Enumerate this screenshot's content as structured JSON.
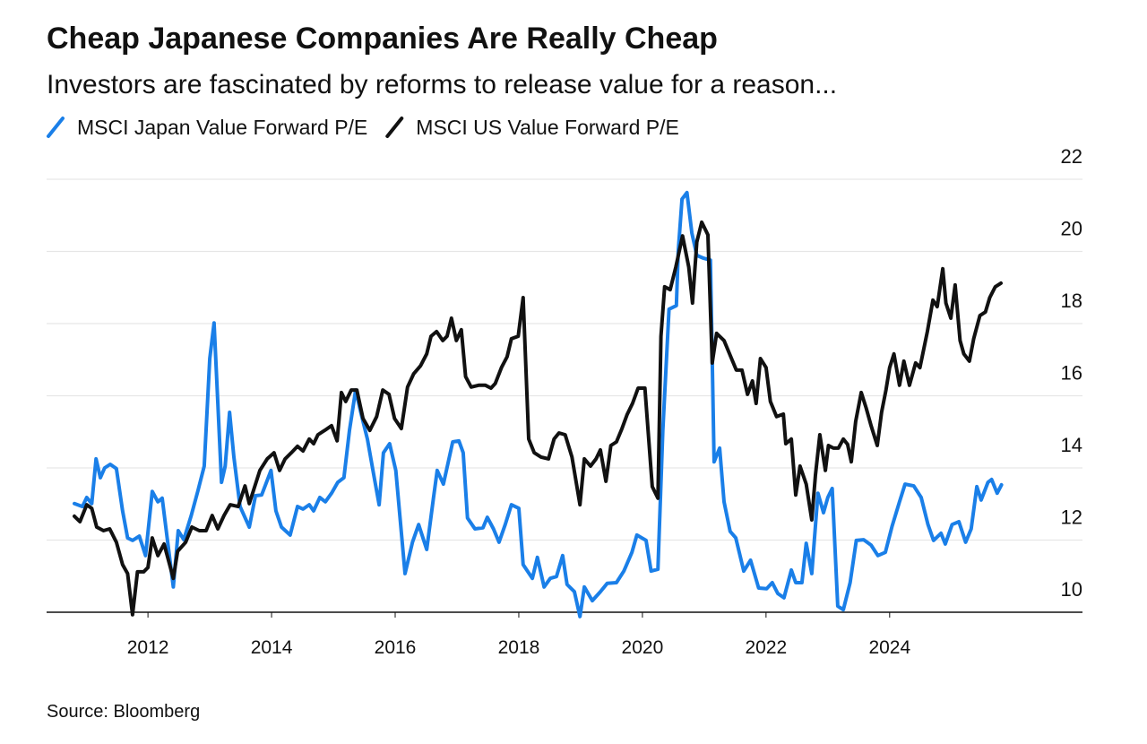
{
  "chart_data": {
    "type": "line",
    "title": "Cheap Japanese Companies Are Really Cheap",
    "subtitle": "Investors are fascinated by reforms to release value for a reason...",
    "source": "Source: Bloomberg",
    "xlim": [
      2010.36,
      2027.12
    ],
    "xticks": [
      2012,
      2014,
      2016,
      2018,
      2020,
      2022,
      2024
    ],
    "ylim": [
      10,
      22
    ],
    "yticks": [
      10,
      12,
      14,
      16,
      18,
      20,
      22
    ],
    "grid": true,
    "legend": "top-left",
    "series": [
      {
        "name": "MSCI Japan Value Forward P/E",
        "color": "#1a7fe8",
        "x": [
          2010.81,
          2010.94,
          2011.01,
          2011.09,
          2011.16,
          2011.23,
          2011.3,
          2011.39,
          2011.49,
          2011.59,
          2011.67,
          2011.75,
          2011.86,
          2011.96,
          2012.07,
          2012.16,
          2012.23,
          2012.41,
          2012.49,
          2012.58,
          2012.7,
          2012.81,
          2012.91,
          2013.0,
          2013.07,
          2013.13,
          2013.19,
          2013.25,
          2013.32,
          2013.39,
          2013.49,
          2013.64,
          2013.74,
          2013.84,
          2013.99,
          2014.07,
          2014.16,
          2014.3,
          2014.42,
          2014.51,
          2014.61,
          2014.68,
          2014.78,
          2014.87,
          2014.97,
          2015.07,
          2015.17,
          2015.26,
          2015.36,
          2015.45,
          2015.55,
          2015.64,
          2015.74,
          2015.81,
          2015.91,
          2016.01,
          2016.16,
          2016.28,
          2016.38,
          2016.51,
          2016.62,
          2016.68,
          2016.78,
          2016.93,
          2017.03,
          2017.1,
          2017.17,
          2017.29,
          2017.42,
          2017.49,
          2017.59,
          2017.68,
          2017.78,
          2017.88,
          2018.0,
          2018.07,
          2018.22,
          2018.3,
          2018.41,
          2018.51,
          2018.61,
          2018.71,
          2018.78,
          2018.9,
          2018.99,
          2019.06,
          2019.19,
          2019.32,
          2019.43,
          2019.58,
          2019.7,
          2019.83,
          2019.91,
          2020.06,
          2020.14,
          2020.25,
          2020.33,
          2020.43,
          2020.55,
          2020.58,
          2020.64,
          2020.72,
          2020.8,
          2020.88,
          2020.99,
          2021.1,
          2021.16,
          2021.25,
          2021.32,
          2021.42,
          2021.51,
          2021.64,
          2021.75,
          2021.88,
          2022.01,
          2022.1,
          2022.19,
          2022.29,
          2022.41,
          2022.48,
          2022.58,
          2022.65,
          2022.74,
          2022.84,
          2022.93,
          2023.0,
          2023.07,
          2023.16,
          2023.25,
          2023.36,
          2023.46,
          2023.58,
          2023.7,
          2023.81,
          2023.93,
          2024.04,
          2024.16,
          2024.25,
          2024.39,
          2024.51,
          2024.62,
          2024.71,
          2024.83,
          2024.9,
          2025.01,
          2025.12,
          2025.23,
          2025.32,
          2025.41,
          2025.48,
          2025.59,
          2025.65,
          2025.74,
          2025.81
        ],
        "values": [
          13.01,
          12.93,
          13.18,
          13.01,
          14.25,
          13.73,
          14.0,
          14.1,
          13.98,
          12.81,
          12.06,
          11.99,
          12.11,
          11.57,
          13.35,
          13.06,
          13.16,
          10.7,
          12.26,
          12.01,
          12.68,
          13.38,
          14.05,
          17.03,
          18.02,
          15.79,
          13.6,
          14.05,
          15.54,
          14.3,
          12.93,
          12.36,
          13.23,
          13.25,
          13.93,
          12.81,
          12.36,
          12.14,
          12.93,
          12.86,
          12.98,
          12.81,
          13.18,
          13.06,
          13.3,
          13.6,
          13.73,
          15.04,
          16.16,
          15.49,
          14.8,
          13.93,
          12.98,
          14.42,
          14.67,
          13.93,
          11.07,
          11.94,
          12.43,
          11.74,
          13.18,
          13.93,
          13.55,
          14.72,
          14.75,
          14.42,
          12.61,
          12.31,
          12.34,
          12.63,
          12.31,
          11.94,
          12.43,
          12.98,
          12.88,
          11.32,
          10.94,
          11.52,
          10.7,
          10.94,
          10.99,
          11.57,
          10.77,
          10.57,
          9.88,
          10.7,
          10.32,
          10.57,
          10.8,
          10.82,
          11.14,
          11.66,
          12.14,
          11.99,
          11.14,
          11.19,
          15.04,
          18.4,
          18.5,
          20.01,
          21.45,
          21.63,
          20.51,
          19.89,
          19.81,
          19.76,
          14.17,
          14.55,
          13.06,
          12.24,
          12.06,
          11.14,
          11.44,
          10.67,
          10.65,
          10.82,
          10.52,
          10.4,
          11.17,
          10.82,
          10.82,
          11.91,
          11.07,
          13.3,
          12.76,
          13.18,
          13.43,
          10.17,
          10.07,
          10.82,
          11.99,
          12.01,
          11.86,
          11.57,
          11.66,
          12.39,
          13.06,
          13.55,
          13.5,
          13.18,
          12.43,
          11.99,
          12.19,
          11.89,
          12.43,
          12.51,
          11.94,
          12.31,
          13.48,
          13.11,
          13.6,
          13.68,
          13.3,
          13.53
        ]
      },
      {
        "name": "MSCI US Value Forward P/E",
        "color": "#111111",
        "x": [
          2010.81,
          2010.9,
          2011.01,
          2011.09,
          2011.17,
          2011.28,
          2011.38,
          2011.49,
          2011.59,
          2011.67,
          2011.75,
          2011.83,
          2011.93,
          2012.0,
          2012.07,
          2012.16,
          2012.26,
          2012.35,
          2012.41,
          2012.48,
          2012.61,
          2012.71,
          2012.83,
          2012.94,
          2013.04,
          2013.13,
          2013.23,
          2013.33,
          2013.46,
          2013.57,
          2013.64,
          2013.81,
          2013.93,
          2014.04,
          2014.13,
          2014.22,
          2014.32,
          2014.42,
          2014.51,
          2014.61,
          2014.68,
          2014.75,
          2014.86,
          2014.97,
          2015.06,
          2015.13,
          2015.2,
          2015.29,
          2015.38,
          2015.48,
          2015.59,
          2015.7,
          2015.8,
          2015.9,
          2015.99,
          2016.1,
          2016.2,
          2016.3,
          2016.41,
          2016.51,
          2016.58,
          2016.67,
          2016.77,
          2016.84,
          2016.91,
          2016.99,
          2017.07,
          2017.14,
          2017.23,
          2017.35,
          2017.46,
          2017.55,
          2017.62,
          2017.72,
          2017.81,
          2017.88,
          2017.99,
          2018.07,
          2018.16,
          2018.25,
          2018.36,
          2018.48,
          2018.57,
          2018.65,
          2018.75,
          2018.86,
          2018.99,
          2019.06,
          2019.16,
          2019.25,
          2019.32,
          2019.41,
          2019.49,
          2019.58,
          2019.67,
          2019.75,
          2019.84,
          2019.93,
          2020.04,
          2020.16,
          2020.25,
          2020.3,
          2020.36,
          2020.45,
          2020.54,
          2020.65,
          2020.75,
          2020.81,
          2020.88,
          2020.96,
          2021.06,
          2021.13,
          2021.2,
          2021.32,
          2021.43,
          2021.52,
          2021.61,
          2021.7,
          2021.78,
          2021.84,
          2021.91,
          2022.0,
          2022.07,
          2022.17,
          2022.28,
          2022.32,
          2022.41,
          2022.48,
          2022.55,
          2022.65,
          2022.74,
          2022.8,
          2022.87,
          2022.96,
          2023.01,
          2023.09,
          2023.17,
          2023.25,
          2023.32,
          2023.38,
          2023.45,
          2023.54,
          2023.62,
          2023.7,
          2023.8,
          2023.87,
          2023.94,
          2024.0,
          2024.07,
          2024.16,
          2024.23,
          2024.32,
          2024.42,
          2024.49,
          2024.61,
          2024.7,
          2024.77,
          2024.86,
          2024.91,
          2024.99,
          2025.06,
          2025.14,
          2025.2,
          2025.29,
          2025.36,
          2025.46,
          2025.55,
          2025.62,
          2025.71,
          2025.8
        ],
        "values": [
          12.66,
          12.51,
          12.98,
          12.88,
          12.36,
          12.26,
          12.31,
          11.94,
          11.32,
          11.07,
          9.93,
          11.12,
          11.12,
          11.24,
          12.06,
          11.57,
          11.89,
          11.32,
          10.94,
          11.69,
          11.94,
          12.36,
          12.26,
          12.26,
          12.68,
          12.31,
          12.68,
          12.98,
          12.93,
          13.5,
          13.01,
          13.93,
          14.25,
          14.42,
          13.93,
          14.25,
          14.42,
          14.6,
          14.47,
          14.8,
          14.67,
          14.92,
          15.04,
          15.17,
          14.75,
          16.09,
          15.84,
          16.16,
          16.16,
          15.37,
          15.04,
          15.42,
          16.16,
          16.04,
          15.37,
          15.09,
          16.24,
          16.61,
          16.83,
          17.16,
          17.65,
          17.78,
          17.53,
          17.65,
          18.15,
          17.53,
          17.83,
          16.53,
          16.24,
          16.29,
          16.29,
          16.21,
          16.34,
          16.78,
          17.08,
          17.58,
          17.65,
          18.72,
          14.8,
          14.42,
          14.3,
          14.25,
          14.8,
          14.97,
          14.92,
          14.3,
          12.98,
          14.25,
          14.05,
          14.25,
          14.5,
          13.63,
          14.62,
          14.72,
          15.09,
          15.47,
          15.79,
          16.21,
          16.21,
          13.48,
          13.16,
          17.65,
          19.02,
          18.94,
          19.57,
          20.43,
          19.57,
          18.57,
          20.26,
          20.81,
          20.46,
          16.91,
          17.73,
          17.53,
          17.08,
          16.71,
          16.71,
          16.04,
          16.41,
          15.79,
          17.03,
          16.78,
          15.84,
          15.42,
          15.49,
          14.67,
          14.8,
          13.25,
          14.05,
          13.55,
          12.56,
          13.8,
          14.92,
          13.93,
          14.62,
          14.55,
          14.55,
          14.8,
          14.65,
          14.17,
          15.29,
          16.09,
          15.66,
          15.17,
          14.62,
          15.54,
          16.16,
          16.78,
          17.16,
          16.29,
          16.96,
          16.29,
          16.91,
          16.78,
          17.78,
          18.65,
          18.47,
          19.52,
          18.57,
          18.15,
          19.07,
          17.53,
          17.16,
          16.96,
          17.58,
          18.22,
          18.32,
          18.72,
          19.02,
          19.12
        ]
      }
    ]
  }
}
